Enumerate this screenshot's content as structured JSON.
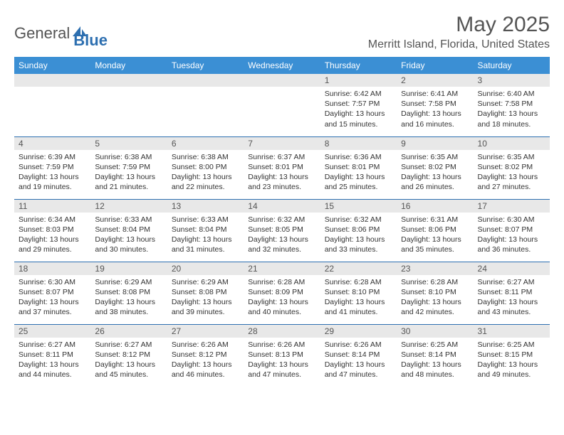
{
  "logo": {
    "part1": "General",
    "part2": "Blue"
  },
  "title": "May 2025",
  "location": "Merritt Island, Florida, United States",
  "colors": {
    "header_bg": "#3b8fd4",
    "header_text": "#ffffff",
    "daynum_bg": "#e8e8e8",
    "border": "#2d6fb0",
    "text": "#333333",
    "title_text": "#555555"
  },
  "day_headers": [
    "Sunday",
    "Monday",
    "Tuesday",
    "Wednesday",
    "Thursday",
    "Friday",
    "Saturday"
  ],
  "weeks": [
    [
      null,
      null,
      null,
      null,
      {
        "n": "1",
        "sr": "6:42 AM",
        "ss": "7:57 PM",
        "dl": "13 hours and 15 minutes."
      },
      {
        "n": "2",
        "sr": "6:41 AM",
        "ss": "7:58 PM",
        "dl": "13 hours and 16 minutes."
      },
      {
        "n": "3",
        "sr": "6:40 AM",
        "ss": "7:58 PM",
        "dl": "13 hours and 18 minutes."
      }
    ],
    [
      {
        "n": "4",
        "sr": "6:39 AM",
        "ss": "7:59 PM",
        "dl": "13 hours and 19 minutes."
      },
      {
        "n": "5",
        "sr": "6:38 AM",
        "ss": "7:59 PM",
        "dl": "13 hours and 21 minutes."
      },
      {
        "n": "6",
        "sr": "6:38 AM",
        "ss": "8:00 PM",
        "dl": "13 hours and 22 minutes."
      },
      {
        "n": "7",
        "sr": "6:37 AM",
        "ss": "8:01 PM",
        "dl": "13 hours and 23 minutes."
      },
      {
        "n": "8",
        "sr": "6:36 AM",
        "ss": "8:01 PM",
        "dl": "13 hours and 25 minutes."
      },
      {
        "n": "9",
        "sr": "6:35 AM",
        "ss": "8:02 PM",
        "dl": "13 hours and 26 minutes."
      },
      {
        "n": "10",
        "sr": "6:35 AM",
        "ss": "8:02 PM",
        "dl": "13 hours and 27 minutes."
      }
    ],
    [
      {
        "n": "11",
        "sr": "6:34 AM",
        "ss": "8:03 PM",
        "dl": "13 hours and 29 minutes."
      },
      {
        "n": "12",
        "sr": "6:33 AM",
        "ss": "8:04 PM",
        "dl": "13 hours and 30 minutes."
      },
      {
        "n": "13",
        "sr": "6:33 AM",
        "ss": "8:04 PM",
        "dl": "13 hours and 31 minutes."
      },
      {
        "n": "14",
        "sr": "6:32 AM",
        "ss": "8:05 PM",
        "dl": "13 hours and 32 minutes."
      },
      {
        "n": "15",
        "sr": "6:32 AM",
        "ss": "8:06 PM",
        "dl": "13 hours and 33 minutes."
      },
      {
        "n": "16",
        "sr": "6:31 AM",
        "ss": "8:06 PM",
        "dl": "13 hours and 35 minutes."
      },
      {
        "n": "17",
        "sr": "6:30 AM",
        "ss": "8:07 PM",
        "dl": "13 hours and 36 minutes."
      }
    ],
    [
      {
        "n": "18",
        "sr": "6:30 AM",
        "ss": "8:07 PM",
        "dl": "13 hours and 37 minutes."
      },
      {
        "n": "19",
        "sr": "6:29 AM",
        "ss": "8:08 PM",
        "dl": "13 hours and 38 minutes."
      },
      {
        "n": "20",
        "sr": "6:29 AM",
        "ss": "8:08 PM",
        "dl": "13 hours and 39 minutes."
      },
      {
        "n": "21",
        "sr": "6:28 AM",
        "ss": "8:09 PM",
        "dl": "13 hours and 40 minutes."
      },
      {
        "n": "22",
        "sr": "6:28 AM",
        "ss": "8:10 PM",
        "dl": "13 hours and 41 minutes."
      },
      {
        "n": "23",
        "sr": "6:28 AM",
        "ss": "8:10 PM",
        "dl": "13 hours and 42 minutes."
      },
      {
        "n": "24",
        "sr": "6:27 AM",
        "ss": "8:11 PM",
        "dl": "13 hours and 43 minutes."
      }
    ],
    [
      {
        "n": "25",
        "sr": "6:27 AM",
        "ss": "8:11 PM",
        "dl": "13 hours and 44 minutes."
      },
      {
        "n": "26",
        "sr": "6:27 AM",
        "ss": "8:12 PM",
        "dl": "13 hours and 45 minutes."
      },
      {
        "n": "27",
        "sr": "6:26 AM",
        "ss": "8:12 PM",
        "dl": "13 hours and 46 minutes."
      },
      {
        "n": "28",
        "sr": "6:26 AM",
        "ss": "8:13 PM",
        "dl": "13 hours and 47 minutes."
      },
      {
        "n": "29",
        "sr": "6:26 AM",
        "ss": "8:14 PM",
        "dl": "13 hours and 47 minutes."
      },
      {
        "n": "30",
        "sr": "6:25 AM",
        "ss": "8:14 PM",
        "dl": "13 hours and 48 minutes."
      },
      {
        "n": "31",
        "sr": "6:25 AM",
        "ss": "8:15 PM",
        "dl": "13 hours and 49 minutes."
      }
    ]
  ],
  "labels": {
    "sunrise": "Sunrise: ",
    "sunset": "Sunset: ",
    "daylight": "Daylight: "
  }
}
